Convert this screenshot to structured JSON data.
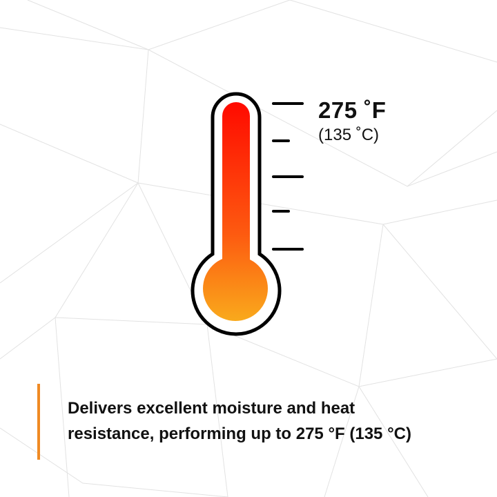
{
  "temperature": {
    "fahrenheit": "275 ˚F",
    "celsius": "(135 ˚C)"
  },
  "caption": {
    "line1": "Delivers excellent moisture and heat",
    "line2": "resistance, performing up to 275 °F (135 °C)"
  },
  "colors": {
    "accent": "#f08a24",
    "thermo_top": "#ff0a00",
    "thermo_bottom": "#f9a81c",
    "outline": "#000000",
    "background_lines": "#e4e4e4"
  },
  "icons": [
    "thermometer-icon"
  ]
}
